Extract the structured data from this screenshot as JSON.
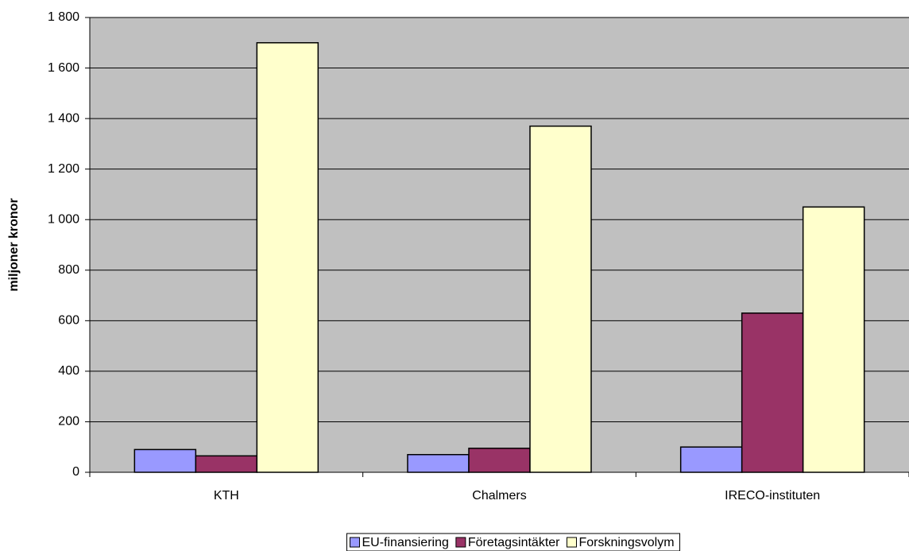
{
  "chart_data": {
    "type": "bar",
    "y_label": "miljoner kronor",
    "categories": [
      "KTH",
      "Chalmers",
      "IRECO-instituten"
    ],
    "series": [
      {
        "name": "EU-finansiering",
        "color": "#9999ff",
        "values": [
          90,
          70,
          100
        ]
      },
      {
        "name": "Företagsintäkter",
        "color": "#993366",
        "values": [
          65,
          95,
          630
        ]
      },
      {
        "name": "Forskningsvolym",
        "color": "#ffffcc",
        "values": [
          1700,
          1370,
          1050
        ]
      }
    ],
    "ylim": [
      0,
      1800
    ],
    "yticks": [
      0,
      200,
      400,
      600,
      800,
      {
        "value": 1000,
        "label": "1 000"
      },
      {
        "value": 1200,
        "label": "1 200"
      },
      {
        "value": 1400,
        "label": "1 400"
      },
      {
        "value": 1600,
        "label": "1 600"
      },
      {
        "value": 1800,
        "label": "1 800"
      }
    ],
    "grid": true,
    "legend": "bottom"
  }
}
